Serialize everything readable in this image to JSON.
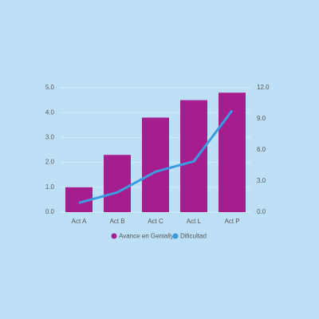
{
  "chart_data": {
    "type": "bar",
    "categories": [
      "Act A",
      "Act B",
      "Act C",
      "Act L",
      "Act P"
    ],
    "series": [
      {
        "name": "Avance en Genially",
        "color": "#a51d8f",
        "type": "bar",
        "values": [
          1.0,
          2.3,
          3.8,
          4.5,
          4.8
        ]
      },
      {
        "name": "Dificultad",
        "color": "#3d9be0",
        "type": "line",
        "axis": "y2",
        "values": [
          0.9,
          1.9,
          3.9,
          4.9,
          9.8
        ]
      }
    ],
    "ylim": [
      0,
      5
    ],
    "yticks": [
      {
        "value": 0,
        "label": "0.0"
      },
      {
        "value": 1,
        "label": "1.0"
      },
      {
        "value": 2,
        "label": "2.0"
      },
      {
        "value": 3,
        "label": "3.0"
      },
      {
        "value": 4,
        "label": "4.0"
      },
      {
        "value": 5,
        "label": "5.0"
      }
    ],
    "y2lim": [
      0,
      12
    ],
    "y2ticks": [
      {
        "value": 0,
        "label": "0.0"
      },
      {
        "value": 3,
        "label": "3.0"
      },
      {
        "value": 6,
        "label": "6.0"
      },
      {
        "value": 9,
        "label": "9.0"
      },
      {
        "value": 12,
        "label": "12.0"
      }
    ],
    "grid": true,
    "legend": "bottom"
  }
}
